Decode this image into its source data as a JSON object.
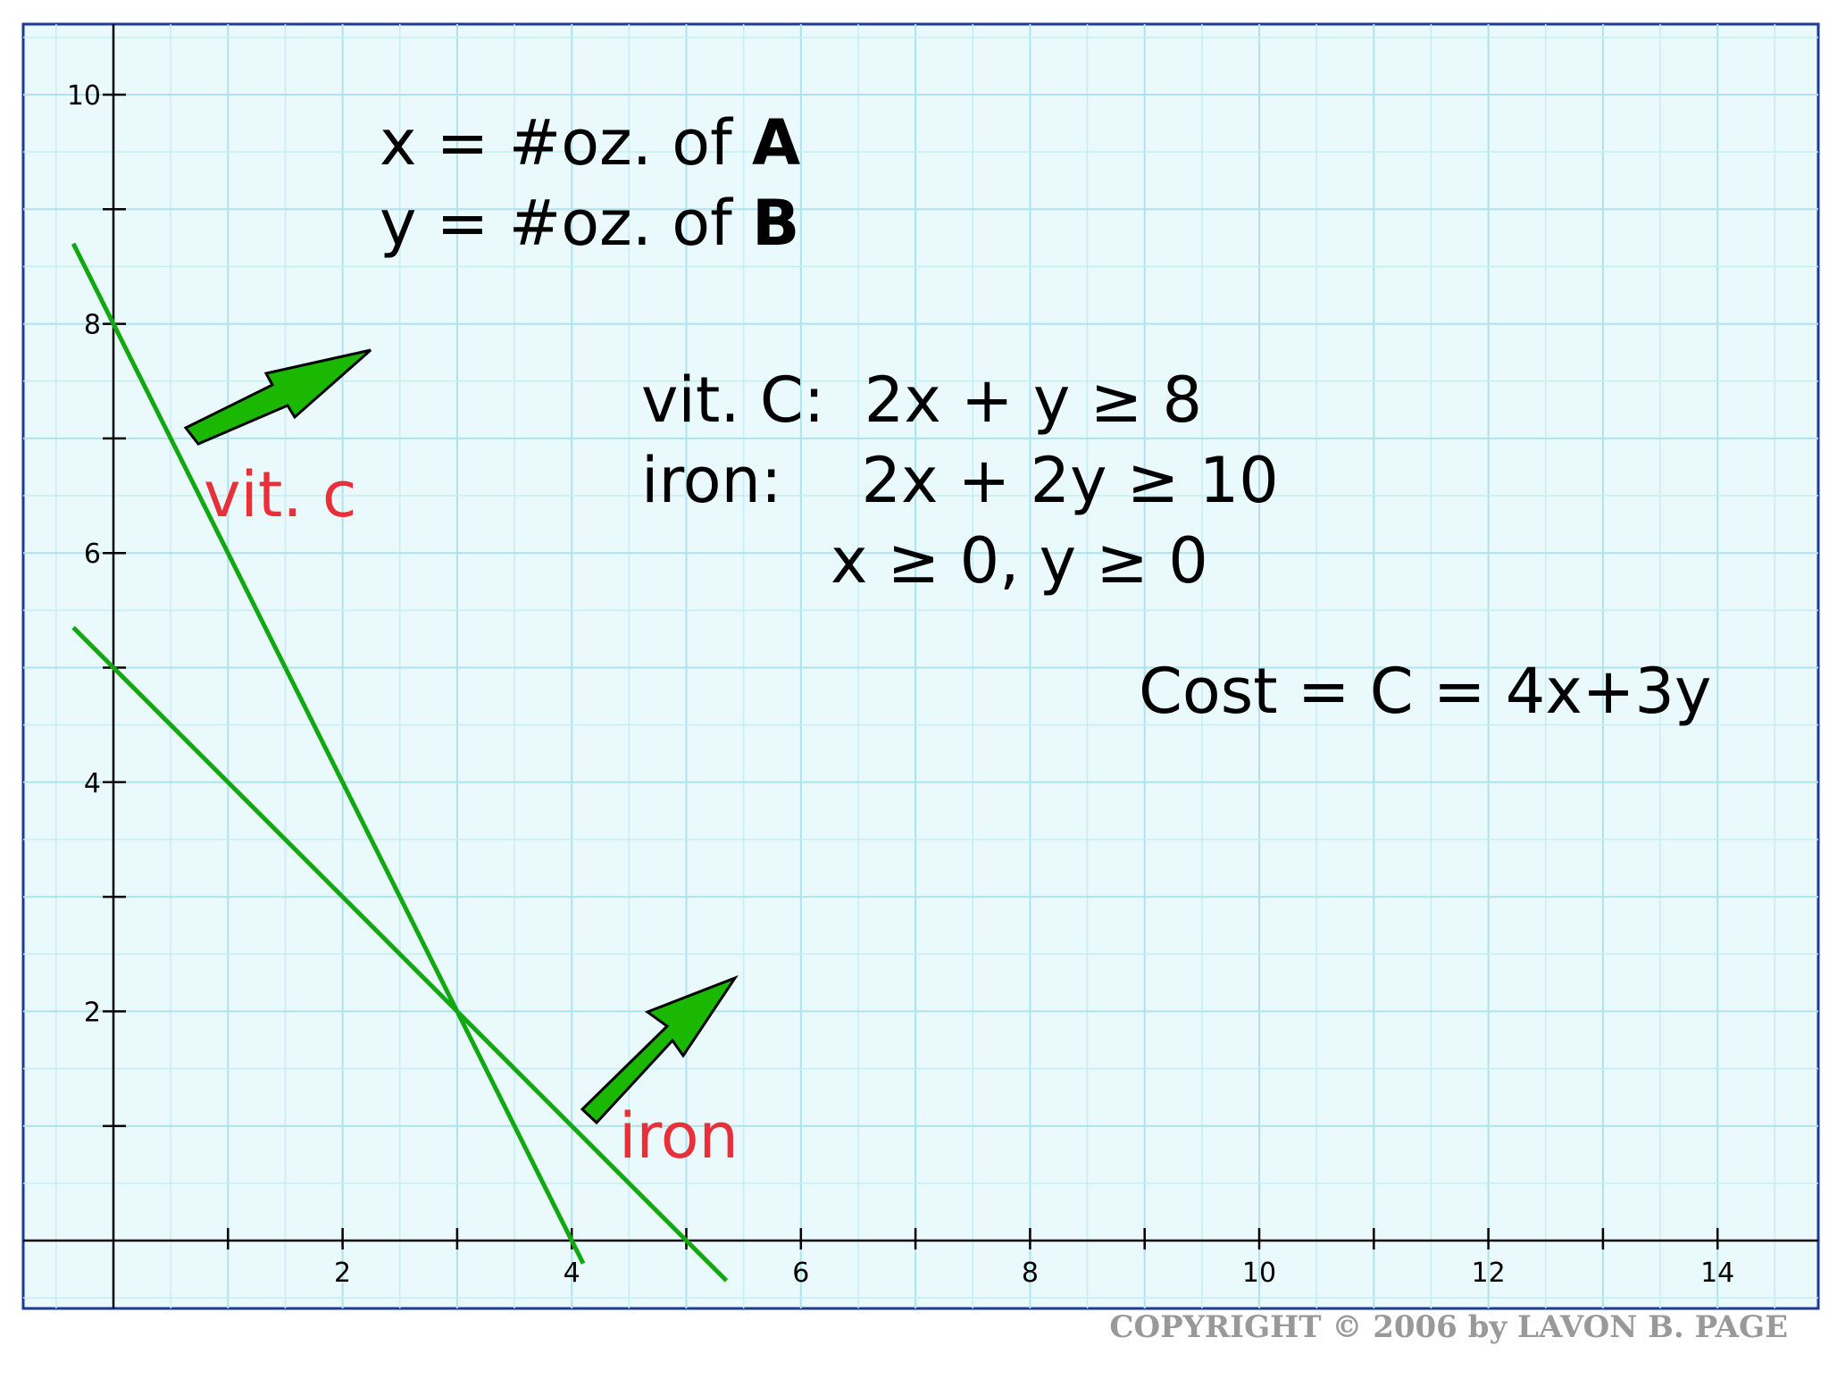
{
  "chart_data": {
    "type": "line",
    "xlim": [
      -0.8,
      14.8
    ],
    "ylim": [
      -0.6,
      10.6
    ],
    "x_ticks": [
      1,
      2,
      3,
      4,
      5,
      6,
      7,
      8,
      9,
      10,
      11,
      12,
      13,
      14
    ],
    "x_tick_labels": [
      {
        "value": 2,
        "label": "2"
      },
      {
        "value": 4,
        "label": "4"
      },
      {
        "value": 6,
        "label": "6"
      },
      {
        "value": 8,
        "label": "8"
      },
      {
        "value": 10,
        "label": "10"
      },
      {
        "value": 12,
        "label": "12"
      },
      {
        "value": 14,
        "label": "14"
      }
    ],
    "y_ticks": [
      1,
      2,
      3,
      4,
      5,
      6,
      7,
      8,
      9,
      10
    ],
    "y_tick_labels": [
      {
        "value": 2,
        "label": "2"
      },
      {
        "value": 4,
        "label": "4"
      },
      {
        "value": 6,
        "label": "6"
      },
      {
        "value": 8,
        "label": "8"
      },
      {
        "value": 10,
        "label": "10"
      }
    ],
    "grid": true,
    "series": [
      {
        "name": "vit. c",
        "color": "#12a812",
        "x": [
          -0.35,
          4.1
        ],
        "y": [
          8.7,
          -0.2
        ]
      },
      {
        "name": "iron",
        "color": "#12a812",
        "x": [
          -0.35,
          5.35
        ],
        "y": [
          5.35,
          -0.35
        ]
      }
    ],
    "annotations": {
      "vars": {
        "x_def": {
          "prefix": "x = #oz. of ",
          "bold": "A"
        },
        "y_def": {
          "prefix": "y = #oz. of ",
          "bold": "B"
        }
      },
      "constraints": {
        "vitc": "vit. C:  2x + y ≥ 8",
        "iron": "iron:    2x + 2y ≥ 10",
        "nonneg": "x ≥ 0, y ≥ 0"
      },
      "cost": "Cost = C = 4x+3y",
      "vitc_label": "vit. c",
      "iron_label": "iron",
      "arrow_color": "#1ab800",
      "label_color": "#e8303a"
    },
    "copyright": "COPYRIGHT © 2006 by LAVON B. PAGE"
  }
}
